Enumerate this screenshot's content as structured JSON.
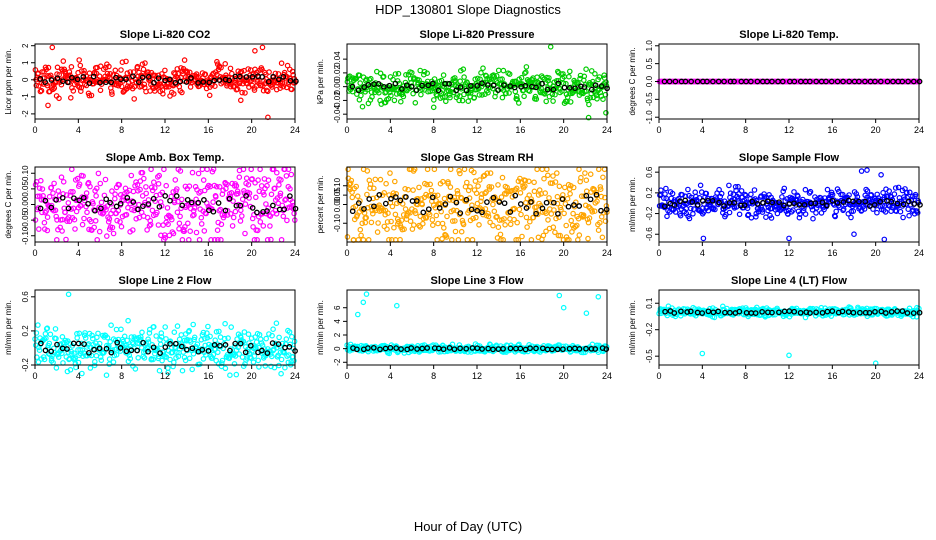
{
  "title": "HDP_130801  Slope Diagnostics",
  "xlabel": "Hour of Day (UTC)",
  "chart_data": [
    {
      "type": "scatter",
      "title": "Slope Li-820 CO2",
      "ylabel": "Licor ppm per min.",
      "series_color": "#ff0000",
      "reference_color": "#000000",
      "xlim": [
        0,
        24
      ],
      "xticks": [
        "0",
        "4",
        "8",
        "12",
        "16",
        "20",
        "24"
      ],
      "ylim": [
        -2.3,
        2.1
      ],
      "yticks": [
        "-2",
        "-1",
        "0",
        "1",
        "2"
      ],
      "ytick_values": [
        -2,
        -1,
        0,
        1,
        2
      ],
      "spread": 0.6,
      "outliers": [
        [
          1.6,
          1.9
        ],
        [
          1.2,
          -1.5
        ],
        [
          20.3,
          1.7
        ],
        [
          21.0,
          1.9
        ],
        [
          21.5,
          -2.2
        ],
        [
          19.0,
          -1.2
        ]
      ]
    },
    {
      "type": "scatter",
      "title": "Slope Li-820 Pressure",
      "ylabel": "kPa per min.",
      "series_color": "#00cc00",
      "reference_color": "#000000",
      "xlim": [
        0,
        24
      ],
      "xticks": [
        "0",
        "4",
        "8",
        "12",
        "16",
        "20",
        "24"
      ],
      "ylim": [
        -0.047,
        0.062
      ],
      "yticks": [
        "-0.04",
        "-0.02",
        "0.00",
        "0.02",
        "0.04"
      ],
      "ytick_values": [
        -0.04,
        -0.02,
        0,
        0.02,
        0.04
      ],
      "spread": 0.016,
      "outliers": [
        [
          22.3,
          -0.045
        ],
        [
          23.9,
          -0.038
        ],
        [
          18.8,
          0.058
        ],
        [
          8.0,
          -0.03
        ]
      ]
    },
    {
      "type": "scatter",
      "title": "Slope Li-820 Temp.",
      "ylabel": "degrees C per min.",
      "series_color": "#ff00ff",
      "reference_color": "#000000",
      "xlim": [
        0,
        24
      ],
      "xticks": [
        "0",
        "4",
        "8",
        "12",
        "16",
        "20",
        "24"
      ],
      "ylim": [
        -1.05,
        1.05
      ],
      "yticks": [
        "-1.0",
        "-0.5",
        "0.0",
        "0.5",
        "1.0"
      ],
      "ytick_values": [
        -1,
        -0.5,
        0,
        0.5,
        1
      ],
      "spread": 0.0,
      "outliers": []
    },
    {
      "type": "scatter",
      "title": "Slope Amb. Box Temp.",
      "ylabel": "degrees C per min.",
      "series_color": "#ff00ff",
      "reference_color": "#000000",
      "xlim": [
        0,
        24
      ],
      "xticks": [
        "0",
        "4",
        "8",
        "12",
        "16",
        "20",
        "24"
      ],
      "ylim": [
        -0.12,
        0.12
      ],
      "yticks": [
        "-0.10",
        "-0.05",
        "0.00",
        "0.05",
        "0.10"
      ],
      "ytick_values": [
        -0.1,
        -0.05,
        0,
        0.05,
        0.1
      ],
      "spread": 0.08,
      "outliers": []
    },
    {
      "type": "scatter",
      "title": "Slope Gas Stream RH",
      "ylabel": "percent per min.",
      "series_color": "#ffa500",
      "reference_color": "#000000",
      "xlim": [
        0,
        24
      ],
      "xticks": [
        "0",
        "4",
        "8",
        "12",
        "16",
        "20",
        "24"
      ],
      "ylim": [
        -0.2,
        0.2
      ],
      "yticks": [
        "-0.10",
        "0.00",
        "0.05",
        "0.10"
      ],
      "ytick_values": [
        -0.1,
        0,
        0.05,
        0.1
      ],
      "spread": 0.15,
      "outliers": [
        [
          0.6,
          -0.19
        ]
      ]
    },
    {
      "type": "scatter",
      "title": "Slope Sample Flow",
      "ylabel": "ml/min per min.",
      "series_color": "#0000ff",
      "reference_color": "#000000",
      "xlim": [
        0,
        24
      ],
      "xticks": [
        "0",
        "4",
        "8",
        "12",
        "16",
        "20",
        "24"
      ],
      "ylim": [
        -0.75,
        0.7
      ],
      "yticks": [
        "-0.6",
        "-0.2",
        "0.2",
        "0.6"
      ],
      "ytick_values": [
        -0.6,
        -0.2,
        0.2,
        0.6
      ],
      "spread": 0.18,
      "outliers": [
        [
          4.1,
          -0.68
        ],
        [
          12.0,
          -0.68
        ],
        [
          18.7,
          0.62
        ],
        [
          19.2,
          0.64
        ],
        [
          20.5,
          0.55
        ],
        [
          7.3,
          0.32
        ],
        [
          18.0,
          -0.6
        ],
        [
          20.8,
          -0.7
        ]
      ]
    },
    {
      "type": "scatter",
      "title": "Slope Line 2 Flow",
      "ylabel": "ml/min per min.",
      "series_color": "#00ffff",
      "reference_color": "#000000",
      "xlim": [
        0,
        24
      ],
      "xticks": [
        "0",
        "4",
        "8",
        "12",
        "16",
        "20",
        "24"
      ],
      "ylim": [
        -0.2,
        0.68
      ],
      "yticks": [
        "-0.2",
        "0.2",
        "0.6"
      ],
      "ytick_values": [
        -0.2,
        0.2,
        0.6
      ],
      "spread": 0.18,
      "outliers": [
        [
          3.1,
          0.63
        ]
      ]
    },
    {
      "type": "scatter",
      "title": "Slope Line 3 Flow",
      "ylabel": "ml/min per min.",
      "series_color": "#00ffff",
      "reference_color": "#000000",
      "xlim": [
        0,
        24
      ],
      "xticks": [
        "0",
        "4",
        "8",
        "12",
        "16",
        "20",
        "24"
      ],
      "ylim": [
        -2.4,
        8.6
      ],
      "yticks": [
        "-2",
        "0",
        "2",
        "4",
        "6"
      ],
      "ytick_values": [
        -2,
        0,
        2,
        4,
        6
      ],
      "spread": 0.35,
      "outliers": [
        [
          1.8,
          8.0
        ],
        [
          1.5,
          6.8
        ],
        [
          1.0,
          5.0
        ],
        [
          19.6,
          7.8
        ],
        [
          20.0,
          6.0
        ],
        [
          22.1,
          5.2
        ],
        [
          23.2,
          7.6
        ],
        [
          4.6,
          6.3
        ]
      ]
    },
    {
      "type": "scatter",
      "title": "Slope Line 4 (LT) Flow",
      "ylabel": "ml/min per min.",
      "series_color": "#00ffff",
      "reference_color": "#000000",
      "xlim": [
        0,
        24
      ],
      "xticks": [
        "0",
        "4",
        "8",
        "12",
        "16",
        "20",
        "24"
      ],
      "ylim": [
        -0.6,
        0.25
      ],
      "yticks": [
        "-0.5",
        "-0.2",
        "0.1"
      ],
      "ytick_values": [
        -0.5,
        -0.2,
        0.1
      ],
      "spread": 0.035,
      "outliers": [
        [
          4.0,
          -0.47
        ],
        [
          12.0,
          -0.49
        ],
        [
          20.0,
          -0.58
        ]
      ]
    }
  ]
}
